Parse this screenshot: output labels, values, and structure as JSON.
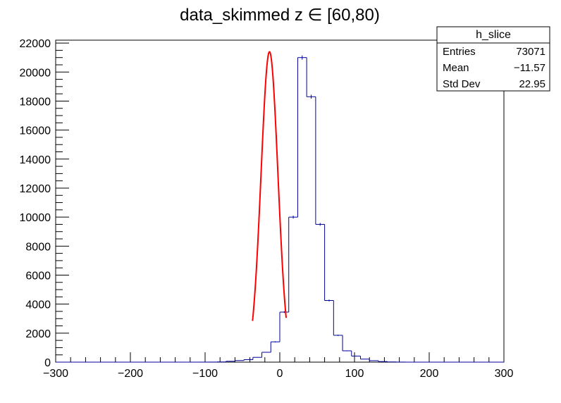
{
  "chart_data": {
    "type": "histogram",
    "title": "data_skimmed z  ∈ [60,80)",
    "xlabel": "",
    "ylabel": "",
    "xlim": [
      -300,
      300
    ],
    "ylim": [
      0,
      22200
    ],
    "x_ticks": [
      -300,
      -200,
      -100,
      0,
      100,
      200,
      300
    ],
    "x_tick_labels": [
      "−300",
      "−200",
      "−100",
      "0",
      "100",
      "200",
      "300"
    ],
    "y_ticks": [
      0,
      2000,
      4000,
      6000,
      8000,
      10000,
      12000,
      14000,
      16000,
      18000,
      20000,
      22000
    ],
    "y_tick_labels": [
      "0",
      "2000",
      "4000",
      "6000",
      "8000",
      "10000",
      "12000",
      "14000",
      "16000",
      "18000",
      "20000",
      "22000"
    ],
    "bin_width": 12,
    "bin_edges_first": -300,
    "bin_values": [
      0,
      0,
      0,
      0,
      0,
      0,
      0,
      0,
      0,
      0,
      0,
      0,
      0,
      0,
      0,
      0,
      2,
      5,
      15,
      60,
      110,
      170,
      330,
      680,
      1400,
      3450,
      10000,
      21000,
      18300,
      9500,
      4250,
      1850,
      780,
      420,
      210,
      100,
      40,
      15,
      5,
      0,
      0,
      0,
      0,
      0,
      0,
      0,
      0,
      0,
      0,
      0
    ],
    "series": [
      {
        "name": "h_slice",
        "color": "#000099"
      }
    ],
    "fit": {
      "type": "gaus",
      "color": "#ff0000",
      "amplitude": 21400,
      "mean": -13.8,
      "sigma": 11.3,
      "range": [
        -36.5,
        8.5
      ]
    },
    "stats_box": {
      "title": "h_slice",
      "rows": [
        {
          "label": "Entries",
          "value": "73071"
        },
        {
          "label": "Mean",
          "value": "−11.57"
        },
        {
          "label": "Std Dev",
          "value": "22.95"
        }
      ]
    },
    "grid": false,
    "legend": "top-right"
  }
}
